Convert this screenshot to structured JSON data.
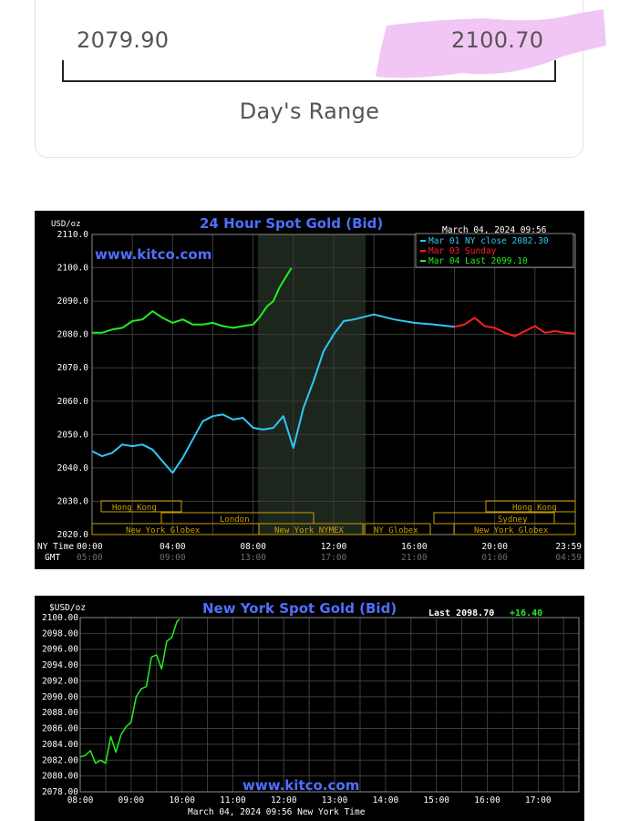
{
  "range_card": {
    "low": "2079.90",
    "high": "2100.70",
    "label": "Day's Range",
    "highlight_color": "#eebcf3"
  },
  "chart_data": [
    {
      "type": "line",
      "title": "24 Hour Spot Gold (Bid)",
      "unit_label": "USD/oz",
      "watermark": "www.kitco.com",
      "timestamp": "March 04, 2024 09:56",
      "ylim": [
        2020,
        2110
      ],
      "yticks": [
        "2110.0",
        "2100.0",
        "2090.0",
        "2080.0",
        "2070.0",
        "2060.0",
        "2050.0",
        "2040.0",
        "2030.0",
        "2020.0"
      ],
      "x_row_labels": [
        "NY Time",
        "GMT"
      ],
      "xticks_ny": [
        "00:00",
        "04:00",
        "08:00",
        "12:00",
        "16:00",
        "20:00",
        "23:59"
      ],
      "xticks_gmt": [
        "05:00",
        "09:00",
        "13:00",
        "17:00",
        "21:00",
        "01:00",
        "04:59"
      ],
      "legend": [
        {
          "text": "Mar 01 NY close 2082.30",
          "color": "#2ec8f5"
        },
        {
          "text": "Mar 03 Sunday",
          "color": "#ff2020"
        },
        {
          "text": "Mar 04 Last 2099.10",
          "color": "#22ee22"
        }
      ],
      "sessions": [
        "Hong Kong",
        "London",
        "New York Globex",
        "New York NYMEX",
        "NY Globex",
        "Hong Kong",
        "Sydney",
        "New York Globex"
      ],
      "series": [
        {
          "name": "Mar 01 NY close 2082.30",
          "color": "#2ec8f5",
          "x": [
            0,
            0.5,
            1,
            1.5,
            2,
            2.5,
            3,
            3.5,
            4,
            4.5,
            5,
            5.5,
            6,
            6.5,
            7,
            7.5,
            8,
            8.5,
            9,
            9.5,
            10,
            10.5,
            11,
            11.5,
            12,
            12.5,
            13,
            14,
            15,
            16,
            17,
            18
          ],
          "y": [
            2045,
            2043.5,
            2044.5,
            2047,
            2046.5,
            2047,
            2045.5,
            2042,
            2038.5,
            2043,
            2048.5,
            2054,
            2055.5,
            2056,
            2054.5,
            2055,
            2052,
            2051.5,
            2052,
            2055.5,
            2046,
            2058,
            2066,
            2075,
            2080,
            2084,
            2084.5,
            2086,
            2084.5,
            2083.5,
            2083,
            2082.3
          ]
        },
        {
          "name": "Mar 03 Sunday",
          "color": "#ff2020",
          "x": [
            18,
            18.5,
            19,
            19.5,
            20,
            20.5,
            21,
            21.5,
            22,
            22.5,
            23,
            23.5,
            23.98
          ],
          "y": [
            2082.3,
            2083,
            2085,
            2082.5,
            2082,
            2080.5,
            2079.5,
            2081,
            2082.5,
            2080.5,
            2081,
            2080.5,
            2080.3
          ]
        },
        {
          "name": "Mar 04 Last 2099.10",
          "color": "#22ee22",
          "x": [
            0,
            0.5,
            1,
            1.5,
            2,
            2.5,
            3,
            3.5,
            4,
            4.5,
            5,
            5.5,
            6,
            6.5,
            7,
            7.5,
            8,
            8.3,
            8.7,
            9,
            9.3,
            9.6,
            9.9
          ],
          "y": [
            2080.5,
            2080.5,
            2081.5,
            2082,
            2084,
            2084.5,
            2087,
            2085,
            2083.5,
            2084.5,
            2083,
            2083,
            2083.5,
            2082.5,
            2082,
            2082.5,
            2083,
            2085,
            2088.5,
            2090,
            2094,
            2097,
            2099.9
          ]
        }
      ]
    },
    {
      "type": "line",
      "title": "New York Spot Gold (Bid)",
      "unit_label": "$USD/oz",
      "last_label": "Last 2098.70",
      "change_label": "+16.40",
      "watermark": "www.kitco.com",
      "timestamp": "March 04, 2024 09:56 New York Time",
      "ylim": [
        2078,
        2100
      ],
      "yticks": [
        "2100.00",
        "2098.00",
        "2096.00",
        "2094.00",
        "2092.00",
        "2090.00",
        "2088.00",
        "2086.00",
        "2084.00",
        "2082.00",
        "2080.00",
        "2078.00"
      ],
      "xticks": [
        "08:00",
        "09:00",
        "10:00",
        "11:00",
        "12:00",
        "13:00",
        "14:00",
        "15:00",
        "16:00",
        "17:00"
      ],
      "series": [
        {
          "name": "",
          "color": "#22ee22",
          "x": [
            8,
            8.1,
            8.2,
            8.3,
            8.4,
            8.5,
            8.6,
            8.7,
            8.8,
            8.9,
            9,
            9.1,
            9.2,
            9.3,
            9.4,
            9.5,
            9.6,
            9.7,
            9.8,
            9.9,
            9.95
          ],
          "y": [
            2082.4,
            2082.6,
            2083.2,
            2081.6,
            2082,
            2081.6,
            2085,
            2083,
            2085.2,
            2086.2,
            2086.8,
            2090,
            2091,
            2091.3,
            2095,
            2095.3,
            2093.5,
            2097,
            2097.5,
            2099.5,
            2099.8
          ]
        }
      ]
    }
  ]
}
